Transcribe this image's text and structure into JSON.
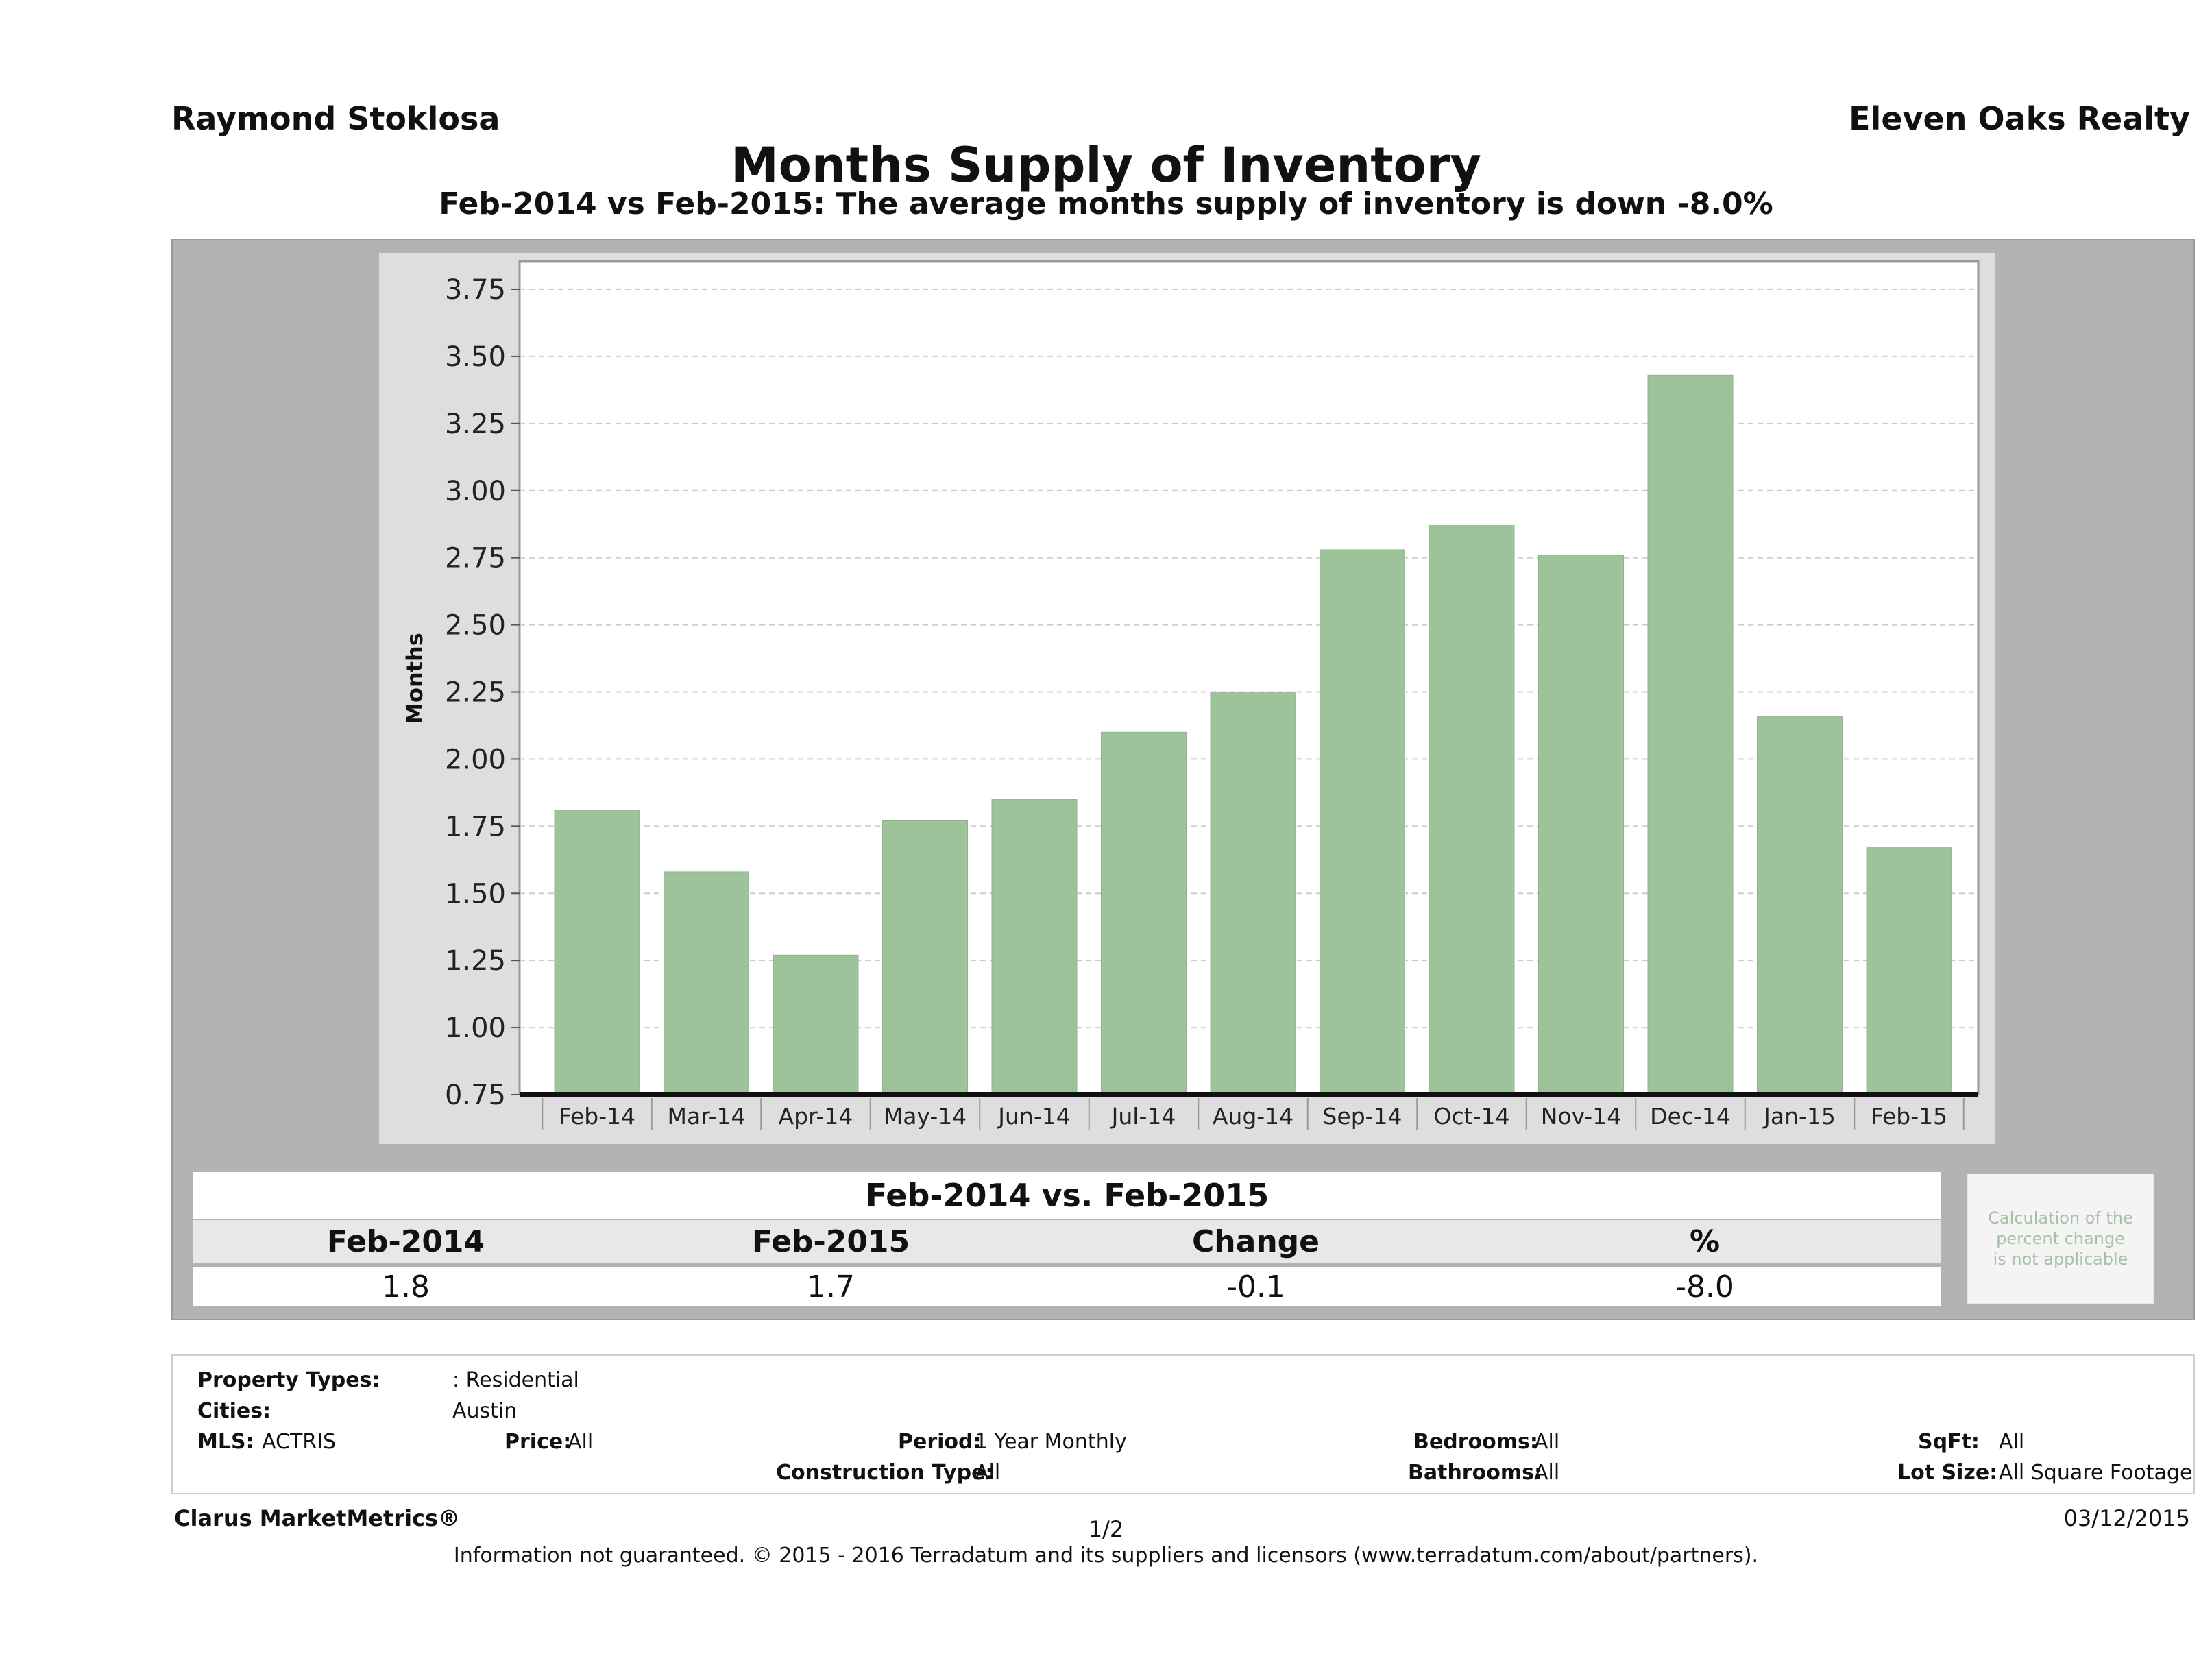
{
  "header": {
    "agent": "Raymond Stoklosa",
    "company": "Eleven Oaks Realty"
  },
  "chart_data": {
    "type": "bar",
    "title": "Months Supply of Inventory",
    "subtitle": "Feb-2014 vs Feb-2015: The average months supply of inventory is down -8.0%",
    "xlabel": "",
    "ylabel": "Months",
    "ylim": [
      0.75,
      3.85
    ],
    "yticks": [
      "0.75",
      "1.00",
      "1.25",
      "1.50",
      "1.75",
      "2.00",
      "2.25",
      "2.50",
      "2.75",
      "3.00",
      "3.25",
      "3.50",
      "3.75"
    ],
    "categories": [
      "Feb-14",
      "Mar-14",
      "Apr-14",
      "May-14",
      "Jun-14",
      "Jul-14",
      "Aug-14",
      "Sep-14",
      "Oct-14",
      "Nov-14",
      "Dec-14",
      "Jan-15",
      "Feb-15"
    ],
    "values": [
      1.81,
      1.58,
      1.27,
      1.77,
      1.85,
      2.1,
      2.25,
      2.78,
      2.87,
      2.76,
      3.43,
      2.16,
      1.67
    ],
    "bar_color": "#9ec39a",
    "grid": true
  },
  "comparison": {
    "heading": "Feb-2014 vs. Feb-2015",
    "labels": [
      "Feb-2014",
      "Feb-2015",
      "Change",
      "%"
    ],
    "values": [
      "1.8",
      "1.7",
      "-0.1",
      "-8.0"
    ],
    "note": [
      "Calculation of the",
      "percent change",
      "is not applicable"
    ]
  },
  "filters": {
    "property_types_label": "Property Types:",
    "property_types": ": Residential",
    "cities_label": "Cities:",
    "cities": "Austin",
    "mls_label": "MLS:",
    "mls": "ACTRIS",
    "price_label": "Price:",
    "price": "All",
    "period_label": "Period:",
    "period": "1 Year Monthly",
    "construction_label": "Construction Type:",
    "construction": "All",
    "bedrooms_label": "Bedrooms:",
    "bedrooms": "All",
    "bathrooms_label": "Bathrooms:",
    "bathrooms": "All",
    "sqft_label": "SqFt:",
    "sqft": "All",
    "lotsize_label": "Lot Size:",
    "lotsize": "All Square Footage"
  },
  "footer": {
    "brand": "Clarus MarketMetrics®",
    "page": "1/2",
    "date": "03/12/2015",
    "disclaimer": "Information not guaranteed. © 2015 - 2016 Terradatum and its suppliers and licensors (www.terradatum.com/about/partners)."
  }
}
